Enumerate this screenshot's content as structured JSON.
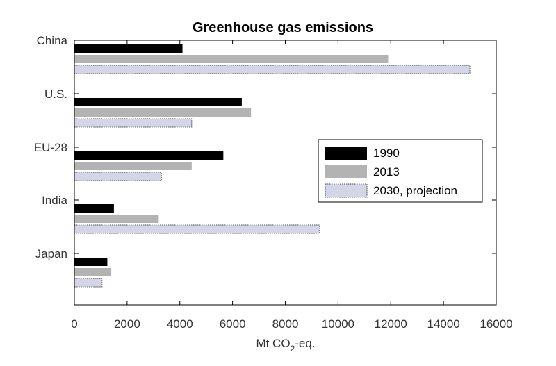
{
  "chart_data": {
    "type": "bar",
    "orientation": "horizontal",
    "title": "Greenhouse gas emissions",
    "xlabel_main": "Mt CO",
    "xlabel_sub": "2",
    "xlabel_tail": "-eq.",
    "ylabel": "",
    "categories": [
      "China",
      "U.S.",
      "EU-28",
      "India",
      "Japan"
    ],
    "xlim": [
      0,
      16000
    ],
    "xticks": [
      0,
      2000,
      4000,
      6000,
      8000,
      10000,
      12000,
      14000,
      16000
    ],
    "xtick_labels": [
      "0",
      "2000",
      "4000",
      "6000",
      "8000",
      "10000",
      "12000",
      "14000",
      "16000"
    ],
    "grid": false,
    "legend_position": "right-center",
    "series": [
      {
        "name": "1990",
        "color": "#000000",
        "pattern": "solid",
        "values": [
          4100,
          6350,
          5650,
          1500,
          1250
        ]
      },
      {
        "name": "2013",
        "color": "#b3b3b3",
        "pattern": "solid",
        "values": [
          11900,
          6700,
          4450,
          3200,
          1400
        ]
      },
      {
        "name": "2030, projection",
        "color": "#d5d5e8",
        "pattern": "dotted-outline",
        "values": [
          15000,
          4450,
          3300,
          9300,
          1050
        ]
      }
    ]
  }
}
